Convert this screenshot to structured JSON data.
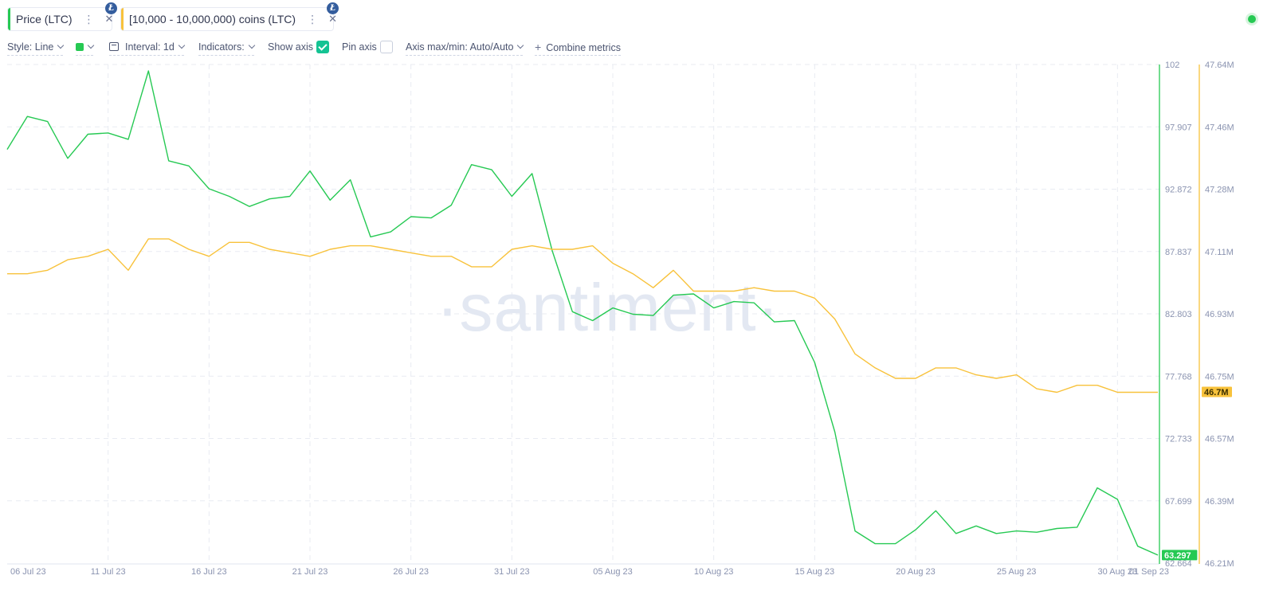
{
  "metrics": [
    {
      "label": "Price (LTC)",
      "color": "#26c953",
      "badge": "Ł"
    },
    {
      "label": "[10,000 - 10,000,000) coins (LTC)",
      "color": "#f8c23b",
      "badge": "Ł"
    }
  ],
  "toolbar": {
    "style": "Style: Line",
    "interval": "Interval: 1d",
    "indicators": "Indicators:",
    "show_axis": "Show axis",
    "pin_axis": "Pin axis",
    "axis_maxmin": "Axis max/min: Auto/Auto",
    "combine": "Combine metrics"
  },
  "watermark": "·santiment·",
  "chart_data": {
    "type": "line",
    "x_tick_labels": [
      "06 Jul 23",
      "11 Jul 23",
      "16 Jul 23",
      "21 Jul 23",
      "26 Jul 23",
      "31 Jul 23",
      "05 Aug 23",
      "10 Aug 23",
      "15 Aug 23",
      "20 Aug 23",
      "25 Aug 23",
      "30 Aug 23",
      "01 Sep 23"
    ],
    "x_start": "2023-07-06",
    "x_end": "2023-09-01",
    "y_left": {
      "ticks": [
        "102",
        "97.907",
        "92.872",
        "87.837",
        "82.803",
        "77.768",
        "72.733",
        "67.699",
        "62.664"
      ],
      "min": 62.664,
      "max": 102,
      "current_label": "63.297",
      "current_value": 63.297
    },
    "y_right": {
      "ticks": [
        "47.64M",
        "47.46M",
        "47.28M",
        "47.11M",
        "46.93M",
        "46.75M",
        "46.57M",
        "46.39M",
        "46.21M"
      ],
      "min": 46.21,
      "max": 47.64,
      "current_label": "46.7M",
      "current_value": 46.7
    },
    "grid": true,
    "series": [
      {
        "name": "Price (LTC)",
        "color": "#26c953",
        "axis": "left",
        "values": [
          95.3,
          97.9,
          97.5,
          94.6,
          96.5,
          96.6,
          96.1,
          101.5,
          94.4,
          94.0,
          92.2,
          91.6,
          90.8,
          91.4,
          91.6,
          93.6,
          91.3,
          92.9,
          88.4,
          88.8,
          90.0,
          89.9,
          90.9,
          94.1,
          93.7,
          91.6,
          93.4,
          87.3,
          82.5,
          81.8,
          82.8,
          82.3,
          82.2,
          83.8,
          83.9,
          82.8,
          83.3,
          83.2,
          81.7,
          81.8,
          78.5,
          73.0,
          65.2,
          64.2,
          64.2,
          65.3,
          66.8,
          65.0,
          65.6,
          65.0,
          65.2,
          65.1,
          65.4,
          65.5,
          68.6,
          67.7,
          64.0,
          63.3
        ]
      },
      {
        "name": "[10,000 - 10,000,000) coins (LTC)",
        "color": "#f8c23b",
        "axis": "right",
        "values": [
          47.04,
          47.04,
          47.05,
          47.08,
          47.09,
          47.11,
          47.05,
          47.14,
          47.14,
          47.11,
          47.09,
          47.13,
          47.13,
          47.11,
          47.1,
          47.09,
          47.11,
          47.12,
          47.12,
          47.11,
          47.1,
          47.09,
          47.09,
          47.06,
          47.06,
          47.11,
          47.12,
          47.11,
          47.11,
          47.12,
          47.07,
          47.04,
          47.0,
          47.05,
          46.99,
          46.99,
          46.99,
          47.0,
          46.99,
          46.99,
          46.97,
          46.91,
          46.81,
          46.77,
          46.74,
          46.74,
          46.77,
          46.77,
          46.75,
          46.74,
          46.75,
          46.71,
          46.7,
          46.72,
          46.72,
          46.7,
          46.7,
          46.7
        ]
      }
    ]
  }
}
